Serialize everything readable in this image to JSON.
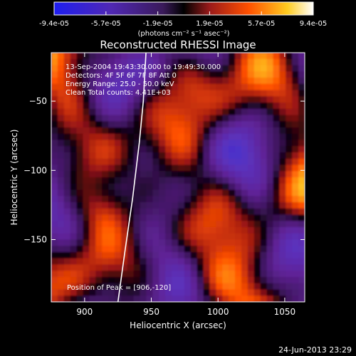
{
  "colorbar": {
    "tick_labels": [
      "-9.4e-05",
      "-5.7e-05",
      "-1.9e-05",
      "1.9e-05",
      "5.7e-05",
      "9.4e-05"
    ],
    "unit_label": "(photons cm⁻² s⁻¹ asec⁻²)"
  },
  "chart_data": {
    "type": "heatmap",
    "title": "Reconstructed RHESSI Image",
    "xlabel": "Heliocentric X (arcsec)",
    "ylabel": "Heliocentric Y (arcsec)",
    "xlim": [
      875,
      1065
    ],
    "ylim": [
      -195,
      -15
    ],
    "x_ticks": [
      900,
      950,
      1000,
      1050
    ],
    "y_ticks": [
      -50,
      -100,
      -150
    ],
    "value_range": [
      -9.4e-05,
      9.4e-05
    ],
    "peak_position": [
      906,
      -120
    ],
    "limb_curve": [
      [
        925,
        -195
      ],
      [
        930,
        -160
      ],
      [
        936,
        -120
      ],
      [
        941,
        -80
      ],
      [
        944,
        -50
      ],
      [
        946,
        -15
      ]
    ],
    "annotations": [
      "13-Sep-2004 19:43:30.000 to 19:49:30.000",
      "Detectors: 4F 5F 6F 7F 8F  Att 0",
      "Energy Range: 25.0 - 50.0 keV",
      "Clean     Total counts: 4.41E+03",
      "Position of Peak = [906,-120]"
    ]
  },
  "footer_timestamp": "24-Jun-2013 23:29"
}
